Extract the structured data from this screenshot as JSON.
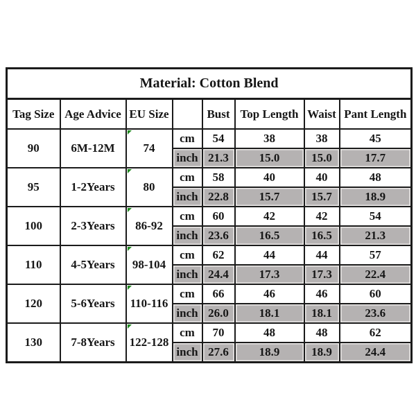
{
  "table": {
    "material_label": "Material: Cotton Blend",
    "columns": {
      "tag_size": "Tag Size",
      "age_advice": "Age Advice",
      "eu_size": "EU Size",
      "unit": "",
      "bust": "Bust",
      "top_length": "Top Length",
      "waist": "Waist",
      "pant_length": "Pant Length"
    },
    "unit_labels": {
      "cm": "cm",
      "inch": "inch"
    },
    "rows": [
      {
        "tag_size": "90",
        "age_advice": "6M-12M",
        "eu_size": "74",
        "cm": [
          "54",
          "38",
          "38",
          "45"
        ],
        "inch": [
          "21.3",
          "15.0",
          "15.0",
          "17.7"
        ]
      },
      {
        "tag_size": "95",
        "age_advice": "1-2Years",
        "eu_size": "80",
        "cm": [
          "58",
          "40",
          "40",
          "48"
        ],
        "inch": [
          "22.8",
          "15.7",
          "15.7",
          "18.9"
        ]
      },
      {
        "tag_size": "100",
        "age_advice": "2-3Years",
        "eu_size": "86-92",
        "cm": [
          "60",
          "42",
          "42",
          "54"
        ],
        "inch": [
          "23.6",
          "16.5",
          "16.5",
          "21.3"
        ]
      },
      {
        "tag_size": "110",
        "age_advice": "4-5Years",
        "eu_size": "98-104",
        "cm": [
          "62",
          "44",
          "44",
          "57"
        ],
        "inch": [
          "24.4",
          "17.3",
          "17.3",
          "22.4"
        ]
      },
      {
        "tag_size": "120",
        "age_advice": "5-6Years",
        "eu_size": "110-116",
        "cm": [
          "66",
          "46",
          "46",
          "60"
        ],
        "inch": [
          "26.0",
          "18.1",
          "18.1",
          "23.6"
        ]
      },
      {
        "tag_size": "130",
        "age_advice": "7-8Years",
        "eu_size": "122-128",
        "cm": [
          "70",
          "48",
          "48",
          "62"
        ],
        "inch": [
          "27.6",
          "18.9",
          "18.9",
          "24.4"
        ]
      }
    ],
    "colors": {
      "shaded_cell": "#b5b2b2",
      "shaded_inner_edge": "#edebe9",
      "border": "#1b1b1b",
      "eu_error_marker": "#1f8a1f",
      "background": "#ffffff"
    }
  }
}
